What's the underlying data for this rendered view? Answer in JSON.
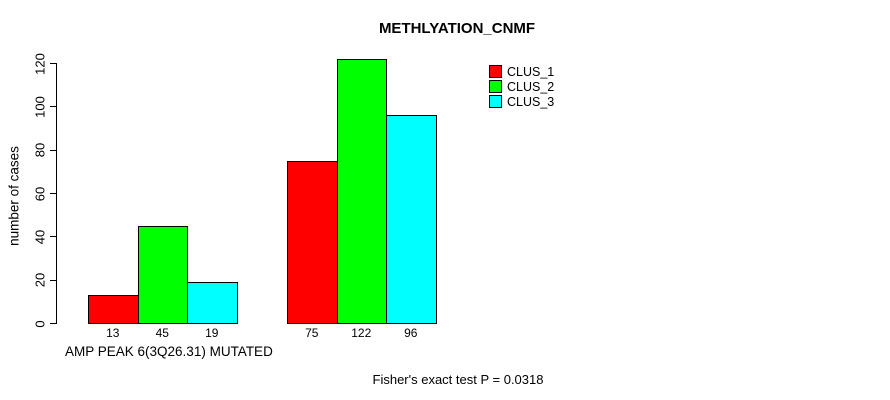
{
  "chart_data": {
    "type": "bar",
    "title": "METHLYATION_CNMF",
    "ylabel": "number of cases",
    "xlabel": "AMP PEAK  6(3Q26.31) MUTATED",
    "annotation": "Fisher's exact test P = 0.0318",
    "ylim": [
      0,
      120
    ],
    "yticks": [
      0,
      20,
      40,
      60,
      80,
      100,
      120
    ],
    "grid": false,
    "legend_position": "top-right",
    "categories": [
      "",
      ""
    ],
    "series": [
      {
        "name": "CLUS_1",
        "color": "#ff0000",
        "values": [
          13,
          75
        ]
      },
      {
        "name": "CLUS_2",
        "color": "#00ff00",
        "values": [
          45,
          122
        ]
      },
      {
        "name": "CLUS_3",
        "color": "#00ffff",
        "values": [
          19,
          96
        ]
      }
    ],
    "bar_value_labels_shown": true,
    "colors": {
      "background": "#ffffff",
      "axis": "#000000",
      "text": "#000000"
    }
  }
}
